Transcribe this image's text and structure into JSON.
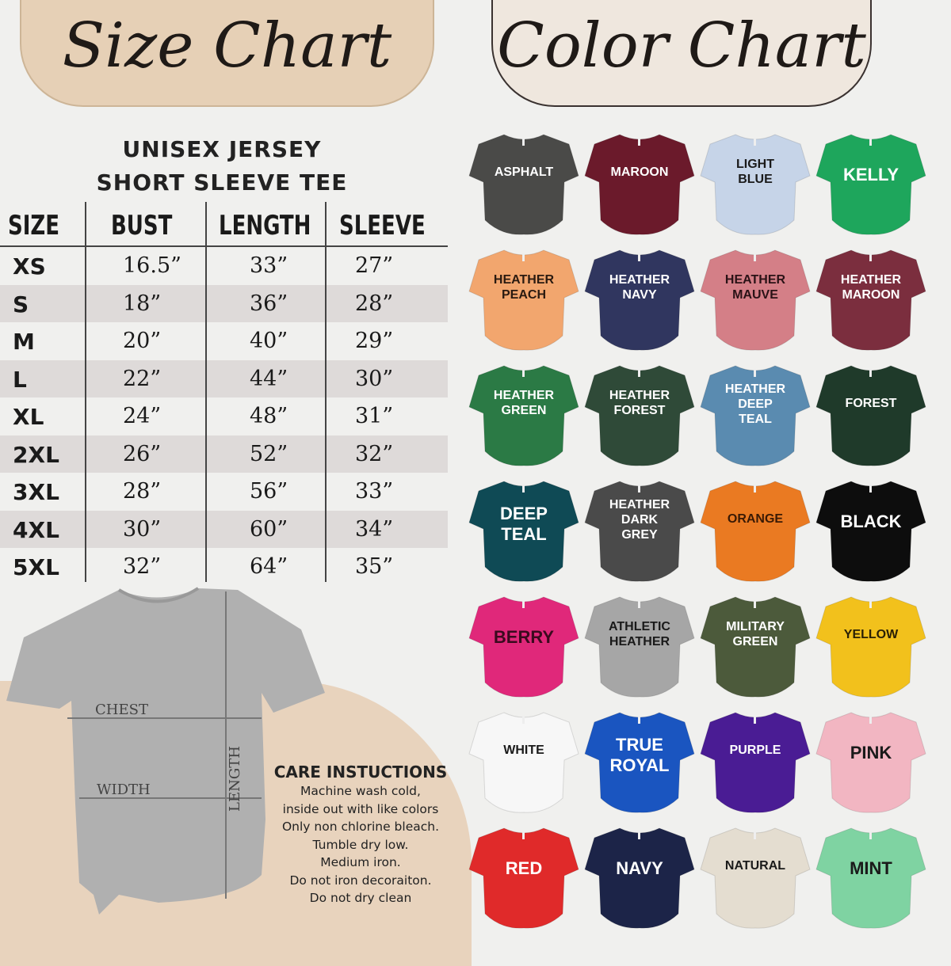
{
  "size_chart": {
    "title": "Size Chart",
    "subtitle_line1": "UNISEX JERSEY",
    "subtitle_line2": "SHORT SLEEVE TEE",
    "headers": [
      "SIZE",
      "BUST",
      "LENGTH",
      "SLEEVE"
    ],
    "rows": [
      [
        "XS",
        "16.5”",
        "33”",
        "27”"
      ],
      [
        "S",
        "18”",
        "36”",
        "28”"
      ],
      [
        "M",
        "20”",
        "40”",
        "29”"
      ],
      [
        "L",
        "22”",
        "44”",
        "30”"
      ],
      [
        "XL",
        "24”",
        "48”",
        "31”"
      ],
      [
        "2XL",
        "26”",
        "52”",
        "32”"
      ],
      [
        "3XL",
        "28”",
        "56”",
        "33”"
      ],
      [
        "4XL",
        "30”",
        "60”",
        "34”"
      ],
      [
        "5XL",
        "32”",
        "64”",
        "35”"
      ]
    ]
  },
  "diagram": {
    "chest": "CHEST",
    "width": "WIDTH",
    "length": "LENGTH"
  },
  "care": {
    "title": "CARE INSTUCTIONS",
    "lines": [
      "Machine wash cold,",
      "inside out with like colors",
      "Only non chlorine bleach.",
      "Tumble dry low.",
      "Medium iron.",
      "Do not iron decoraiton.",
      "Do not dry clean"
    ]
  },
  "color_chart": {
    "title": "Color Chart",
    "colors": [
      {
        "name": "ASPHALT",
        "hex": "#4a4a48",
        "text": "#ffffff"
      },
      {
        "name": "MAROON",
        "hex": "#6b1a2b",
        "text": "#ffffff"
      },
      {
        "name": "LIGHT BLUE",
        "hex": "#c6d4e8",
        "text": "#1a1a1a"
      },
      {
        "name": "KELLY",
        "hex": "#1ea65c",
        "text": "#ffffff"
      },
      {
        "name": "HEATHER PEACH",
        "hex": "#f2a66e",
        "text": "#2a1a10"
      },
      {
        "name": "HEATHER NAVY",
        "hex": "#30365f",
        "text": "#ffffff"
      },
      {
        "name": "HEATHER MAUVE",
        "hex": "#d47f87",
        "text": "#2a1216"
      },
      {
        "name": "HEATHER MAROON",
        "hex": "#7b2e3e",
        "text": "#ffffff"
      },
      {
        "name": "HEATHER GREEN",
        "hex": "#2b7a45",
        "text": "#ffffff"
      },
      {
        "name": "HEATHER FOREST",
        "hex": "#2f4a38",
        "text": "#ffffff"
      },
      {
        "name": "HEATHER DEEP TEAL",
        "hex": "#5a8bb0",
        "text": "#ffffff"
      },
      {
        "name": "FOREST",
        "hex": "#1f3a2a",
        "text": "#ffffff"
      },
      {
        "name": "DEEP TEAL",
        "hex": "#0f4a55",
        "text": "#ffffff"
      },
      {
        "name": "HEATHER DARK GREY",
        "hex": "#4a4a4a",
        "text": "#ffffff"
      },
      {
        "name": "ORANGE",
        "hex": "#ea7a22",
        "text": "#3a1a05"
      },
      {
        "name": "BLACK",
        "hex": "#0d0d0d",
        "text": "#ffffff"
      },
      {
        "name": "BERRY",
        "hex": "#e0287a",
        "text": "#3a0a1e"
      },
      {
        "name": "ATHLETIC HEATHER",
        "hex": "#a6a6a6",
        "text": "#1a1a1a"
      },
      {
        "name": "MILITARY GREEN",
        "hex": "#4c5a3b",
        "text": "#ffffff"
      },
      {
        "name": "YELLOW",
        "hex": "#f2c11c",
        "text": "#2a2005"
      },
      {
        "name": "WHITE",
        "hex": "#f7f7f7",
        "text": "#1a1a1a"
      },
      {
        "name": "TRUE ROYAL",
        "hex": "#1a55c0",
        "text": "#ffffff"
      },
      {
        "name": "PURPLE",
        "hex": "#4a1c94",
        "text": "#ffffff"
      },
      {
        "name": "PINK",
        "hex": "#f2b6c2",
        "text": "#1a1a1a"
      },
      {
        "name": "RED",
        "hex": "#e02a2a",
        "text": "#ffffff"
      },
      {
        "name": "NAVY",
        "hex": "#1c2448",
        "text": "#ffffff"
      },
      {
        "name": "NATURAL",
        "hex": "#e4ddd0",
        "text": "#1a1a1a"
      },
      {
        "name": "MINT",
        "hex": "#7fd3a2",
        "text": "#1a1a1a"
      }
    ]
  }
}
